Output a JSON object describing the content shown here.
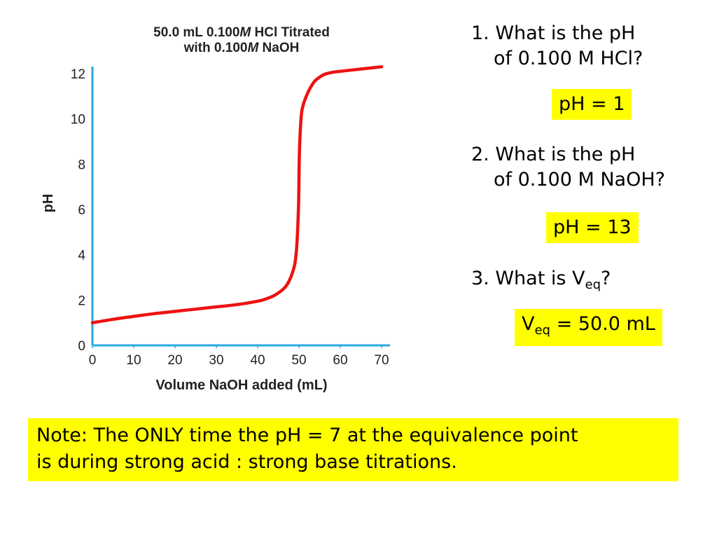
{
  "chart_data": {
    "type": "line",
    "title": [
      "50.0 mL 0.100M HCl Titrated",
      "with 0.100M NaOH"
    ],
    "xlabel": "Volume NaOH added (mL)",
    "ylabel": "pH",
    "xlim": [
      0,
      70
    ],
    "ylim": [
      0,
      12
    ],
    "xticks": [
      "0",
      "10",
      "20",
      "30",
      "40",
      "50",
      "60",
      "70"
    ],
    "yticks": [
      "0",
      "2",
      "4",
      "6",
      "8",
      "10",
      "12"
    ],
    "series": [
      {
        "color": "#ee1111",
        "x": [
          0,
          5,
          10,
          15,
          20,
          25,
          30,
          35,
          40,
          42,
          44,
          46,
          47,
          48,
          49,
          49.5,
          49.9,
          50.1,
          50.5,
          51,
          52,
          53,
          54,
          56,
          58,
          60,
          65,
          70
        ],
        "y": [
          1.0,
          1.15,
          1.28,
          1.4,
          1.5,
          1.6,
          1.7,
          1.8,
          1.95,
          2.05,
          2.2,
          2.45,
          2.65,
          3.0,
          3.6,
          4.5,
          6.2,
          8.5,
          10.0,
          10.6,
          11.1,
          11.45,
          11.7,
          11.95,
          12.05,
          12.1,
          12.2,
          12.3
        ]
      }
    ]
  },
  "questions": [
    {
      "line1": "1. What is the pH",
      "line2": "of 0.100 M HCl?",
      "answer": "pH = 1"
    },
    {
      "line1": "2. What is the pH",
      "line2": "of 0.100 M NaOH?",
      "answer": "pH = 13"
    }
  ],
  "q3": {
    "prefix": "3. What is V",
    "sub": "eq",
    "suffix": "?"
  },
  "a3": {
    "prefix": "V",
    "sub": "eq",
    "suffix": " = 50.0 mL"
  },
  "note": {
    "line1": "Note: The ONLY time the pH = 7 at the equivalence point",
    "line2": "is during strong acid : strong base titrations."
  },
  "colors": {
    "highlight": "#ffff00",
    "axis": "#29a8e0",
    "curve": "#ee1111"
  }
}
